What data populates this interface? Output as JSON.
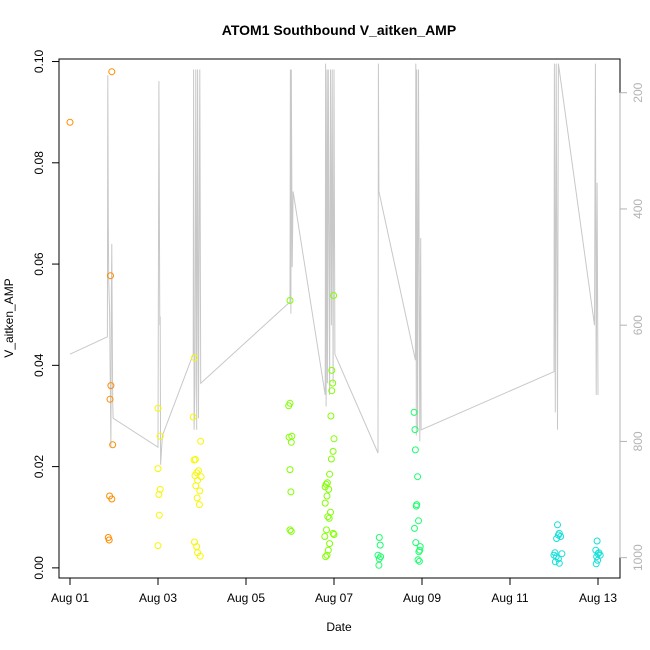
{
  "chart_data": {
    "type": "scatter",
    "title": "ATOM1 Southbound V_aitken_AMP",
    "xlabel": "Date",
    "ylabel": "V_aitken_AMP",
    "x_tick_labels": [
      "Aug 01",
      "Aug 03",
      "Aug 05",
      "Aug 07",
      "Aug 09",
      "Aug 11",
      "Aug 13"
    ],
    "x_tick_days": [
      1,
      3,
      5,
      7,
      9,
      11,
      13
    ],
    "xlim_days": [
      0.75,
      13.5
    ],
    "ylim": [
      -0.002,
      0.1005
    ],
    "y_ticks": [
      0.0,
      0.02,
      0.04,
      0.06,
      0.08,
      0.1
    ],
    "y_tick_labels": [
      "0.00",
      "0.02",
      "0.04",
      "0.06",
      "0.08",
      "0.10"
    ],
    "right_axis": {
      "ylim": [
        1035,
        142
      ],
      "ticks": [
        200,
        400,
        600,
        800,
        1000
      ],
      "tick_labels": [
        "200",
        "400",
        "600",
        "800",
        "1000"
      ],
      "color": "#b3b3b3"
    },
    "grid": false,
    "series": [
      {
        "color": "#FF8C00",
        "points": [
          [
            1.0,
            0.088
          ],
          [
            1.95,
            0.098
          ],
          [
            1.92,
            0.0577
          ],
          [
            1.93,
            0.036
          ],
          [
            1.91,
            0.0333
          ],
          [
            1.97,
            0.0243
          ],
          [
            1.9,
            0.0142
          ],
          [
            1.95,
            0.0136
          ],
          [
            1.87,
            0.006
          ],
          [
            1.89,
            0.0055
          ]
        ]
      },
      {
        "color": "#F7F700",
        "points": [
          [
            3.0,
            0.0315
          ],
          [
            3.05,
            0.026
          ],
          [
            3.0,
            0.0196
          ],
          [
            3.05,
            0.0155
          ],
          [
            3.02,
            0.0145
          ],
          [
            3.03,
            0.0104
          ],
          [
            3.0,
            0.0044
          ],
          [
            3.83,
            0.0415
          ],
          [
            3.8,
            0.0298
          ],
          [
            3.97,
            0.025
          ],
          [
            3.85,
            0.0214
          ],
          [
            3.82,
            0.0213
          ],
          [
            3.92,
            0.0192
          ],
          [
            3.88,
            0.0188
          ],
          [
            3.84,
            0.0182
          ],
          [
            3.98,
            0.018
          ],
          [
            3.9,
            0.0173
          ],
          [
            3.86,
            0.0162
          ],
          [
            3.95,
            0.0152
          ],
          [
            3.89,
            0.0138
          ],
          [
            3.94,
            0.0125
          ],
          [
            3.83,
            0.0051
          ],
          [
            3.88,
            0.0042
          ],
          [
            3.9,
            0.003
          ],
          [
            3.96,
            0.0023
          ]
        ]
      },
      {
        "color": "#80FF00",
        "points": [
          [
            6.0,
            0.0528
          ],
          [
            5.97,
            0.032
          ],
          [
            6.0,
            0.0325
          ],
          [
            5.98,
            0.0258
          ],
          [
            6.04,
            0.026
          ],
          [
            6.03,
            0.0248
          ],
          [
            6.0,
            0.0194
          ],
          [
            6.02,
            0.015
          ],
          [
            6.0,
            0.0075
          ],
          [
            6.03,
            0.0072
          ],
          [
            6.99,
            0.0538
          ],
          [
            6.95,
            0.039
          ],
          [
            6.97,
            0.0365
          ],
          [
            6.95,
            0.035
          ],
          [
            6.93,
            0.03
          ],
          [
            7.0,
            0.0255
          ],
          [
            6.98,
            0.023
          ],
          [
            6.94,
            0.0215
          ],
          [
            6.9,
            0.0185
          ],
          [
            6.85,
            0.0168
          ],
          [
            6.82,
            0.0165
          ],
          [
            6.8,
            0.016
          ],
          [
            6.88,
            0.0155
          ],
          [
            6.84,
            0.0142
          ],
          [
            6.8,
            0.0128
          ],
          [
            6.92,
            0.011
          ],
          [
            6.86,
            0.0101
          ],
          [
            6.89,
            0.0098
          ],
          [
            6.98,
            0.0068
          ],
          [
            7.0,
            0.0066
          ],
          [
            6.83,
            0.0075
          ],
          [
            6.79,
            0.0062
          ],
          [
            6.9,
            0.0048
          ],
          [
            6.87,
            0.0035
          ],
          [
            6.84,
            0.0025
          ],
          [
            6.81,
            0.0022
          ]
        ]
      },
      {
        "color": "#19FF6A",
        "points": [
          [
            8.03,
            0.006
          ],
          [
            8.05,
            0.0045
          ],
          [
            8.0,
            0.0025
          ],
          [
            8.06,
            0.0022
          ],
          [
            8.03,
            0.0018
          ],
          [
            8.02,
            0.0005
          ],
          [
            8.82,
            0.0307
          ],
          [
            8.84,
            0.0273
          ],
          [
            8.85,
            0.0233
          ],
          [
            8.9,
            0.018
          ],
          [
            8.88,
            0.0125
          ],
          [
            8.87,
            0.0122
          ],
          [
            8.92,
            0.0093
          ],
          [
            8.83,
            0.0078
          ],
          [
            8.86,
            0.005
          ],
          [
            8.96,
            0.0042
          ],
          [
            8.95,
            0.0035
          ],
          [
            8.93,
            0.0032
          ],
          [
            8.91,
            0.0016
          ],
          [
            8.94,
            0.0013
          ]
        ]
      },
      {
        "color": "#14E0D8",
        "points": [
          [
            12.08,
            0.0085
          ],
          [
            12.1,
            0.0065
          ],
          [
            12.12,
            0.0068
          ],
          [
            12.06,
            0.0058
          ],
          [
            12.15,
            0.0062
          ],
          [
            12.02,
            0.003
          ],
          [
            12.0,
            0.0025
          ],
          [
            12.05,
            0.0022
          ],
          [
            12.18,
            0.0028
          ],
          [
            12.1,
            0.0018
          ],
          [
            12.03,
            0.0012
          ],
          [
            12.12,
            0.0009
          ],
          [
            12.98,
            0.0053
          ],
          [
            12.95,
            0.0035
          ],
          [
            13.0,
            0.0028
          ],
          [
            13.02,
            0.003
          ],
          [
            12.97,
            0.0022
          ],
          [
            13.05,
            0.0025
          ],
          [
            12.99,
            0.0015
          ],
          [
            12.96,
            0.0008
          ]
        ]
      }
    ],
    "line_series": {
      "color": "#c8c8c8",
      "axis": "right",
      "points": [
        [
          1.0,
          650
        ],
        [
          1.85,
          620
        ],
        [
          1.86,
          170
        ],
        [
          1.87,
          420
        ],
        [
          1.88,
          520
        ],
        [
          1.9,
          580
        ],
        [
          1.93,
          810
        ],
        [
          1.94,
          540
        ],
        [
          1.95,
          460
        ],
        [
          1.96,
          590
        ],
        [
          1.97,
          730
        ],
        [
          1.98,
          760
        ],
        [
          3.0,
          810
        ],
        [
          3.02,
          180
        ],
        [
          3.04,
          600
        ],
        [
          3.05,
          585
        ],
        [
          3.06,
          840
        ],
        [
          3.1,
          790
        ],
        [
          3.8,
          650
        ],
        [
          3.81,
          160
        ],
        [
          3.82,
          780
        ],
        [
          3.84,
          700
        ],
        [
          3.86,
          160
        ],
        [
          3.88,
          780
        ],
        [
          3.9,
          160
        ],
        [
          3.92,
          760
        ],
        [
          3.95,
          160
        ],
        [
          3.97,
          700
        ],
        [
          6.0,
          560
        ],
        [
          6.01,
          160
        ],
        [
          6.02,
          580
        ],
        [
          6.03,
          160
        ],
        [
          6.05,
          500
        ],
        [
          6.07,
          370
        ],
        [
          6.8,
          720
        ],
        [
          6.81,
          150
        ],
        [
          6.82,
          740
        ],
        [
          6.84,
          160
        ],
        [
          6.85,
          700
        ],
        [
          6.87,
          160
        ],
        [
          6.9,
          720
        ],
        [
          6.92,
          160
        ],
        [
          6.94,
          600
        ],
        [
          6.96,
          160
        ],
        [
          6.98,
          700
        ],
        [
          7.0,
          160
        ],
        [
          7.02,
          650
        ],
        [
          8.0,
          820
        ],
        [
          8.01,
          150
        ],
        [
          8.02,
          370
        ],
        [
          8.85,
          660
        ],
        [
          8.86,
          150
        ],
        [
          8.87,
          790
        ],
        [
          8.88,
          160
        ],
        [
          8.9,
          780
        ],
        [
          8.92,
          160
        ],
        [
          8.95,
          800
        ],
        [
          8.97,
          450
        ],
        [
          8.98,
          780
        ],
        [
          12.0,
          680
        ],
        [
          12.01,
          150
        ],
        [
          12.03,
          750
        ],
        [
          12.05,
          150
        ],
        [
          12.08,
          780
        ],
        [
          12.1,
          150
        ],
        [
          12.92,
          600
        ],
        [
          12.94,
          150
        ],
        [
          12.96,
          720
        ],
        [
          12.98,
          355
        ],
        [
          13.0,
          720
        ]
      ]
    }
  }
}
